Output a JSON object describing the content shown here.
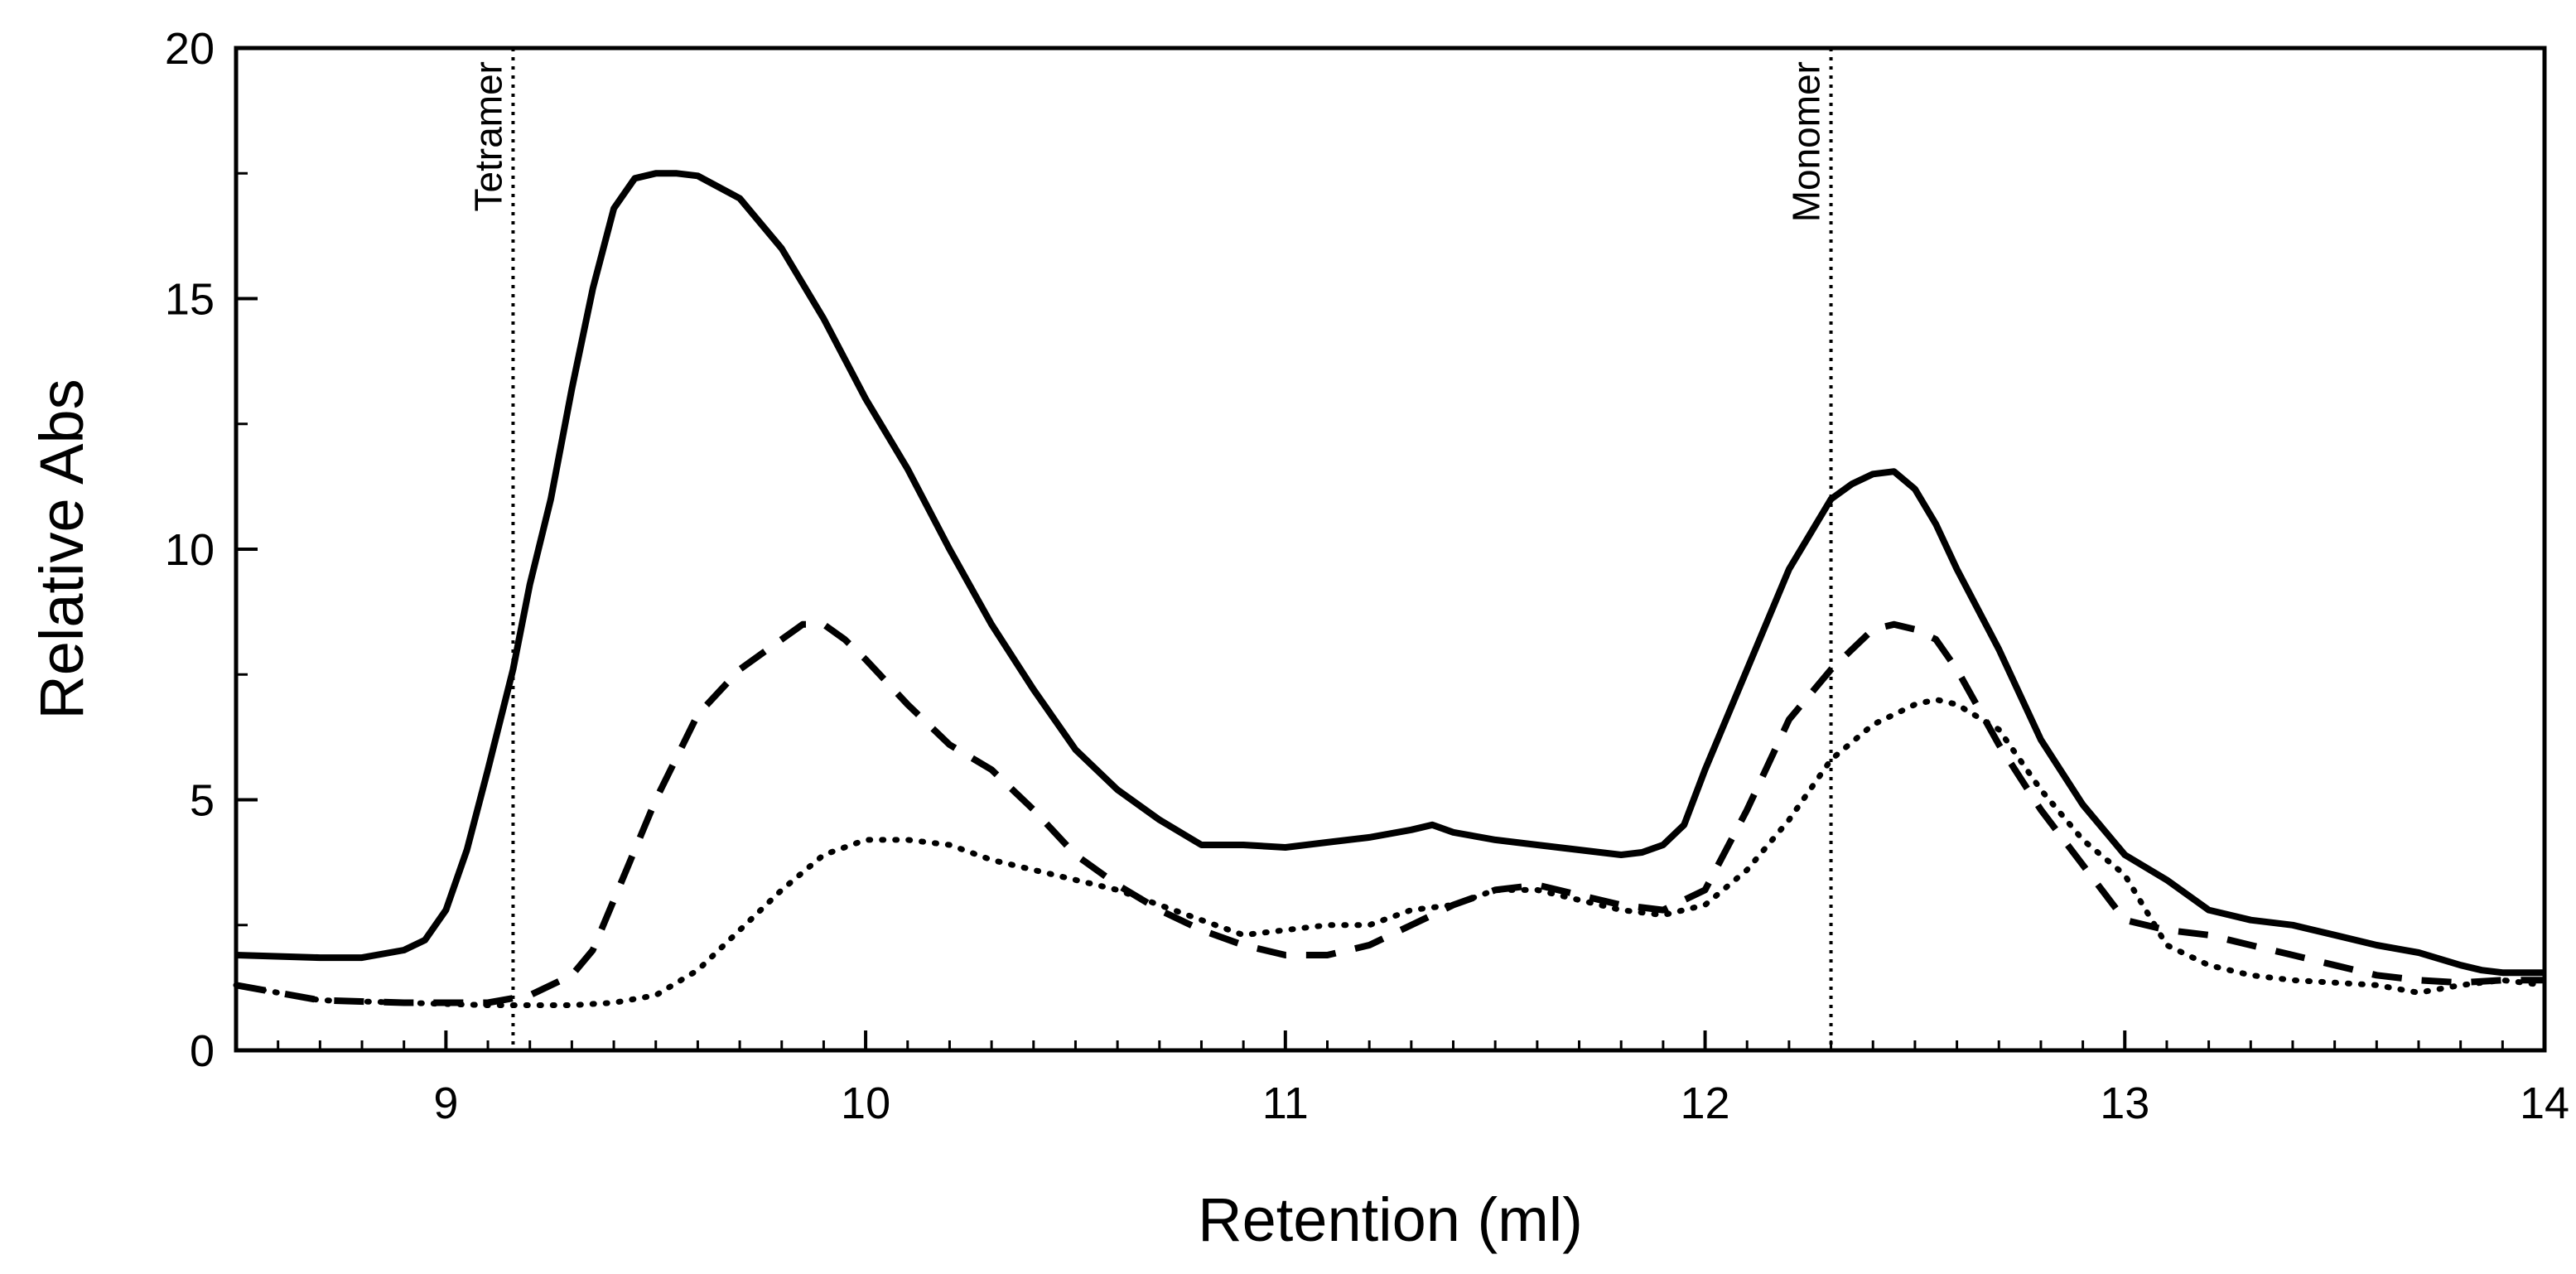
{
  "chart_data": {
    "type": "line",
    "title": "",
    "xlabel": "Retention (ml)",
    "ylabel": "Relative Abs",
    "xlim": [
      8.5,
      14
    ],
    "ylim": [
      0,
      20
    ],
    "xticks": [
      9,
      10,
      11,
      12,
      13,
      14
    ],
    "yticks": [
      0,
      5,
      10,
      15,
      20
    ],
    "xtick_labels": [
      "9",
      "10",
      "11",
      "12",
      "13",
      "14"
    ],
    "ytick_labels": [
      "0",
      "5",
      "10",
      "15",
      "20"
    ],
    "grid": false,
    "markers": [
      {
        "label": "Tetramer",
        "x": 9.16
      },
      {
        "label": "Monomer",
        "x": 12.3
      }
    ],
    "series": [
      {
        "name": "solid",
        "style": "solid",
        "color": "#000000",
        "x": [
          8.5,
          8.7,
          8.8,
          8.9,
          8.95,
          9.0,
          9.05,
          9.1,
          9.16,
          9.2,
          9.25,
          9.3,
          9.35,
          9.4,
          9.45,
          9.5,
          9.55,
          9.6,
          9.7,
          9.8,
          9.9,
          10.0,
          10.1,
          10.2,
          10.3,
          10.4,
          10.5,
          10.6,
          10.7,
          10.8,
          10.9,
          11.0,
          11.1,
          11.2,
          11.3,
          11.35,
          11.4,
          11.5,
          11.6,
          11.7,
          11.8,
          11.85,
          11.9,
          11.95,
          12.0,
          12.1,
          12.2,
          12.3,
          12.35,
          12.4,
          12.45,
          12.5,
          12.55,
          12.6,
          12.7,
          12.8,
          12.9,
          13.0,
          13.1,
          13.2,
          13.3,
          13.4,
          13.5,
          13.6,
          13.7,
          13.8,
          13.85,
          13.9,
          14.0
        ],
        "y": [
          1.9,
          1.85,
          1.85,
          2.0,
          2.2,
          2.8,
          4.0,
          5.6,
          7.6,
          9.3,
          11.0,
          13.2,
          15.2,
          16.8,
          17.4,
          17.5,
          17.5,
          17.45,
          17.0,
          16.0,
          14.6,
          13.0,
          11.6,
          10.0,
          8.5,
          7.2,
          6.0,
          5.2,
          4.6,
          4.1,
          4.1,
          4.05,
          4.15,
          4.25,
          4.4,
          4.5,
          4.35,
          4.2,
          4.1,
          4.0,
          3.9,
          3.95,
          4.1,
          4.5,
          5.6,
          7.6,
          9.6,
          11.0,
          11.3,
          11.5,
          11.55,
          11.2,
          10.5,
          9.6,
          8.0,
          6.2,
          4.9,
          3.9,
          3.4,
          2.8,
          2.6,
          2.5,
          2.3,
          2.1,
          1.95,
          1.7,
          1.6,
          1.55,
          1.55
        ]
      },
      {
        "name": "dashed",
        "style": "dashed",
        "color": "#000000",
        "x": [
          8.5,
          8.7,
          8.9,
          9.1,
          9.2,
          9.3,
          9.35,
          9.4,
          9.5,
          9.6,
          9.7,
          9.8,
          9.85,
          9.9,
          9.95,
          10.0,
          10.1,
          10.2,
          10.3,
          10.4,
          10.5,
          10.6,
          10.7,
          10.8,
          10.9,
          11.0,
          11.1,
          11.2,
          11.3,
          11.4,
          11.5,
          11.6,
          11.7,
          11.8,
          11.9,
          12.0,
          12.1,
          12.2,
          12.3,
          12.4,
          12.45,
          12.5,
          12.55,
          12.6,
          12.7,
          12.8,
          12.9,
          13.0,
          13.1,
          13.2,
          13.3,
          13.4,
          13.5,
          13.6,
          13.7,
          13.8,
          13.9,
          14.0
        ],
        "y": [
          1.3,
          1.0,
          0.95,
          0.95,
          1.1,
          1.5,
          2.0,
          3.0,
          5.0,
          6.7,
          7.6,
          8.2,
          8.5,
          8.5,
          8.2,
          7.8,
          6.9,
          6.1,
          5.6,
          4.8,
          3.9,
          3.3,
          2.8,
          2.4,
          2.1,
          1.9,
          1.9,
          2.1,
          2.5,
          2.9,
          3.2,
          3.3,
          3.1,
          2.9,
          2.8,
          3.2,
          4.8,
          6.6,
          7.6,
          8.4,
          8.5,
          8.4,
          8.2,
          7.6,
          6.1,
          4.8,
          3.7,
          2.6,
          2.4,
          2.3,
          2.1,
          1.9,
          1.7,
          1.5,
          1.4,
          1.35,
          1.4,
          1.4
        ]
      },
      {
        "name": "dotted",
        "style": "dotted",
        "color": "#000000",
        "x": [
          8.5,
          8.7,
          8.9,
          9.1,
          9.2,
          9.3,
          9.4,
          9.5,
          9.6,
          9.7,
          9.8,
          9.9,
          10.0,
          10.1,
          10.2,
          10.3,
          10.4,
          10.5,
          10.6,
          10.7,
          10.8,
          10.9,
          11.0,
          11.1,
          11.2,
          11.3,
          11.4,
          11.5,
          11.6,
          11.7,
          11.8,
          11.9,
          12.0,
          12.1,
          12.2,
          12.3,
          12.4,
          12.5,
          12.55,
          12.6,
          12.7,
          12.8,
          12.9,
          13.0,
          13.1,
          13.2,
          13.3,
          13.4,
          13.5,
          13.6,
          13.7,
          13.8,
          13.9,
          14.0
        ],
        "y": [
          1.3,
          1.0,
          0.95,
          0.9,
          0.9,
          0.9,
          0.95,
          1.1,
          1.6,
          2.4,
          3.2,
          3.9,
          4.2,
          4.2,
          4.1,
          3.8,
          3.6,
          3.4,
          3.2,
          2.9,
          2.6,
          2.3,
          2.4,
          2.5,
          2.5,
          2.8,
          2.9,
          3.2,
          3.2,
          3.0,
          2.8,
          2.7,
          2.9,
          3.6,
          4.6,
          5.8,
          6.5,
          6.9,
          7.0,
          6.9,
          6.4,
          5.2,
          4.2,
          3.5,
          2.1,
          1.7,
          1.5,
          1.4,
          1.35,
          1.3,
          1.15,
          1.3,
          1.4,
          1.3
        ]
      }
    ]
  }
}
